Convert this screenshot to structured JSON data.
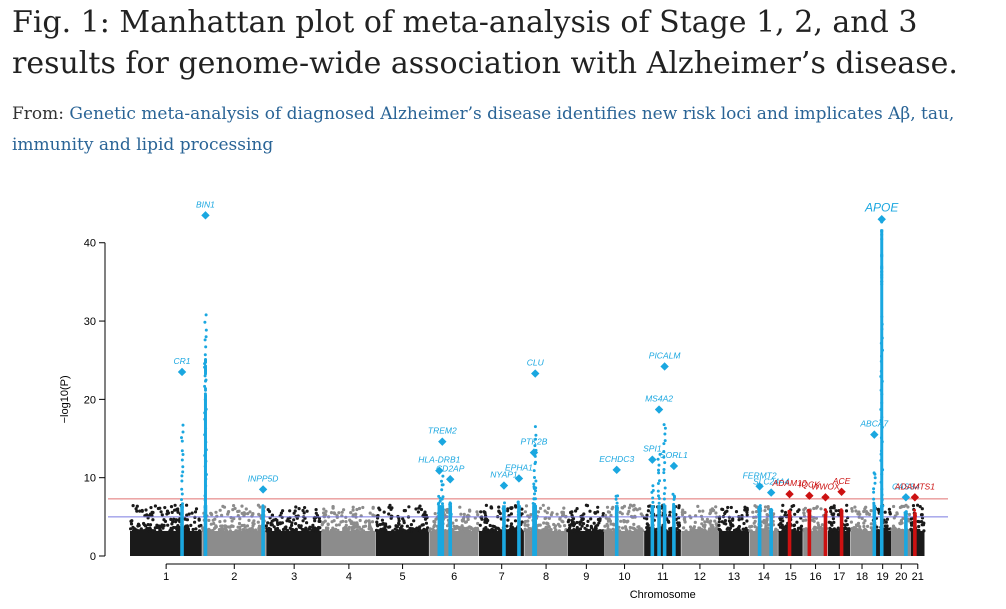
{
  "figure": {
    "title": "Fig. 1: Manhattan plot of meta-analysis of Stage 1, 2, and 3 results for genome-wide association with Alzheimer’s disease.",
    "from_label": "From:",
    "source_link": "Genetic meta-analysis of diagnosed Alzheimer’s disease identifies new risk loci and implicates Aβ, tau, immunity and lipid processing"
  },
  "chart_data": {
    "type": "scatter",
    "xlabel": "Chromosome",
    "ylabel": "−log10(P)",
    "ylim": [
      0,
      45
    ],
    "yticks": [
      0,
      10,
      20,
      30,
      40
    ],
    "chromosomes": [
      "1",
      "2",
      "3",
      "4",
      "5",
      "6",
      "7",
      "8",
      "9",
      "10",
      "11",
      "12",
      "13",
      "14",
      "15",
      "16",
      "17",
      "18",
      "19",
      "20",
      "21"
    ],
    "thresholds": [
      {
        "name": "genome-wide significance",
        "value": 7.3,
        "color": "#e07070"
      },
      {
        "name": "suggestive",
        "value": 5.0,
        "color": "#7a7ae0"
      }
    ],
    "colors": {
      "odd": "#1a1a1a",
      "even": "#8c8c8c",
      "known": "#1aa7e0",
      "novel": "#cc1111"
    },
    "known_loci": [
      {
        "label": "BIN1",
        "chr": "2",
        "pos": 0.05,
        "logp": 43.5
      },
      {
        "label": "APOE",
        "chr": "19",
        "pos": 0.45,
        "logp": 43.0
      },
      {
        "label": "CR1",
        "chr": "1",
        "pos": 0.72,
        "logp": 23.5
      },
      {
        "label": "INPP5D",
        "chr": "2",
        "pos": 0.95,
        "logp": 8.5
      },
      {
        "label": "TREM2",
        "chr": "6",
        "pos": 0.26,
        "logp": 14.6
      },
      {
        "label": "HLA-DRB1",
        "chr": "6",
        "pos": 0.2,
        "logp": 10.9
      },
      {
        "label": "CD2AP",
        "chr": "6",
        "pos": 0.42,
        "logp": 9.8
      },
      {
        "label": "NYAP1",
        "chr": "7",
        "pos": 0.55,
        "logp": 9.0
      },
      {
        "label": "EPHA1",
        "chr": "7",
        "pos": 0.88,
        "logp": 9.9
      },
      {
        "label": "CLU",
        "chr": "8",
        "pos": 0.25,
        "logp": 23.3
      },
      {
        "label": "PTK2B",
        "chr": "8",
        "pos": 0.22,
        "logp": 13.2
      },
      {
        "label": "ECHDC3",
        "chr": "10",
        "pos": 0.3,
        "logp": 11.0
      },
      {
        "label": "PICALM",
        "chr": "11",
        "pos": 0.55,
        "logp": 24.2
      },
      {
        "label": "MS4A2",
        "chr": "11",
        "pos": 0.4,
        "logp": 18.7
      },
      {
        "label": "SPI1",
        "chr": "11",
        "pos": 0.22,
        "logp": 12.3
      },
      {
        "label": "SORL1",
        "chr": "11",
        "pos": 0.8,
        "logp": 11.5
      },
      {
        "label": "FERMT2",
        "chr": "14",
        "pos": 0.35,
        "logp": 8.9
      },
      {
        "label": "SLC24A4",
        "chr": "14",
        "pos": 0.75,
        "logp": 8.1
      },
      {
        "label": "ABCA7",
        "chr": "19",
        "pos": 0.05,
        "logp": 15.5
      },
      {
        "label": "CASS4",
        "chr": "20",
        "pos": 0.75,
        "logp": 7.5
      }
    ],
    "novel_loci": [
      {
        "label": "ADAM10",
        "chr": "15",
        "pos": 0.45,
        "logp": 7.9
      },
      {
        "label": "IQCK",
        "chr": "16",
        "pos": 0.25,
        "logp": 7.7
      },
      {
        "label": "WWOX",
        "chr": "16",
        "pos": 0.9,
        "logp": 7.5
      },
      {
        "label": "ACE",
        "chr": "17",
        "pos": 0.6,
        "logp": 8.2
      },
      {
        "label": "ADAMTS1",
        "chr": "21",
        "pos": 0.3,
        "logp": 7.5
      }
    ]
  }
}
